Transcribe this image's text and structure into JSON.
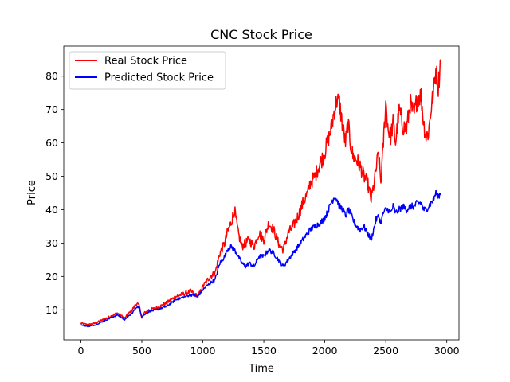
{
  "chart_data": {
    "type": "line",
    "title": "CNC Stock Price",
    "xlabel": "Time",
    "ylabel": "Price",
    "xlim": [
      -140,
      3100
    ],
    "ylim": [
      1,
      89
    ],
    "xticks": [
      0,
      500,
      1000,
      1500,
      2000,
      2500,
      3000
    ],
    "yticks": [
      10,
      20,
      30,
      40,
      50,
      60,
      70,
      80
    ],
    "grid": false,
    "legend": "upper-left",
    "series": [
      {
        "name": "Real Stock Price",
        "color": "#ff0000",
        "x": [
          0,
          60,
          120,
          180,
          240,
          300,
          360,
          420,
          460,
          480,
          500,
          520,
          560,
          620,
          700,
          780,
          860,
          900,
          960,
          1000,
          1060,
          1100,
          1140,
          1180,
          1200,
          1230,
          1260,
          1290,
          1320,
          1350,
          1380,
          1420,
          1460,
          1500,
          1540,
          1580,
          1620,
          1660,
          1700,
          1740,
          1780,
          1820,
          1860,
          1880,
          1920,
          1960,
          1990,
          2020,
          2050,
          2080,
          2100,
          2120,
          2150,
          2170,
          2190,
          2210,
          2230,
          2260,
          2290,
          2320,
          2350,
          2380,
          2400,
          2420,
          2440,
          2460,
          2480,
          2500,
          2520,
          2540,
          2560,
          2580,
          2610,
          2640,
          2670,
          2700,
          2730,
          2760,
          2790,
          2810,
          2830,
          2850,
          2870,
          2890,
          2910,
          2930,
          2950
        ],
        "values": [
          6,
          5.5,
          6,
          7,
          8,
          9,
          7.5,
          10,
          12,
          11,
          7.5,
          9,
          10,
          10.5,
          12,
          14,
          15,
          15.5,
          14,
          17,
          20,
          21,
          27,
          30,
          33,
          36,
          40,
          33,
          29,
          30,
          31,
          29,
          33,
          31,
          36,
          34,
          30,
          28,
          33,
          35,
          38,
          42,
          45,
          48,
          50,
          54,
          56,
          60,
          64,
          70,
          73,
          72,
          64,
          60,
          66,
          60,
          56,
          55,
          53,
          50,
          48,
          43,
          47,
          52,
          57,
          48,
          60,
          72,
          64,
          62,
          66,
          60,
          70,
          65,
          64,
          72,
          68,
          74,
          74,
          66,
          62,
          63,
          70,
          75,
          82,
          77,
          85
        ]
      },
      {
        "name": "Predicted Stock Price",
        "color": "#0000ff",
        "x": [
          0,
          60,
          120,
          180,
          240,
          300,
          360,
          420,
          460,
          480,
          500,
          520,
          560,
          620,
          700,
          780,
          860,
          900,
          960,
          1000,
          1060,
          1100,
          1140,
          1180,
          1200,
          1230,
          1260,
          1290,
          1320,
          1350,
          1380,
          1420,
          1460,
          1500,
          1540,
          1580,
          1620,
          1660,
          1700,
          1740,
          1780,
          1820,
          1860,
          1880,
          1920,
          1960,
          1990,
          2020,
          2050,
          2080,
          2100,
          2120,
          2150,
          2170,
          2190,
          2210,
          2230,
          2260,
          2290,
          2320,
          2350,
          2380,
          2400,
          2420,
          2440,
          2460,
          2480,
          2500,
          2520,
          2540,
          2560,
          2580,
          2610,
          2640,
          2670,
          2700,
          2730,
          2760,
          2790,
          2810,
          2830,
          2850,
          2870,
          2890,
          2910,
          2930,
          2950
        ],
        "values": [
          5.5,
          5,
          5.5,
          6.5,
          7.5,
          8.5,
          7,
          9,
          11,
          10.5,
          8,
          8.5,
          9.5,
          10,
          11,
          13,
          14,
          14.5,
          14,
          16,
          18,
          19,
          24,
          26,
          28,
          29,
          28,
          26,
          24,
          23,
          24,
          23,
          26,
          26,
          28,
          27,
          25,
          23,
          25,
          27,
          29,
          31,
          33,
          34,
          35,
          36,
          37,
          39,
          42,
          44,
          43,
          41,
          40,
          38,
          40,
          39,
          37,
          35,
          34,
          35,
          33,
          31,
          34,
          37,
          38,
          36,
          39,
          40,
          40,
          39,
          41,
          39,
          40,
          41,
          40,
          41,
          41,
          42,
          42,
          40,
          40,
          41,
          42,
          43,
          45,
          44,
          45
        ]
      }
    ]
  }
}
